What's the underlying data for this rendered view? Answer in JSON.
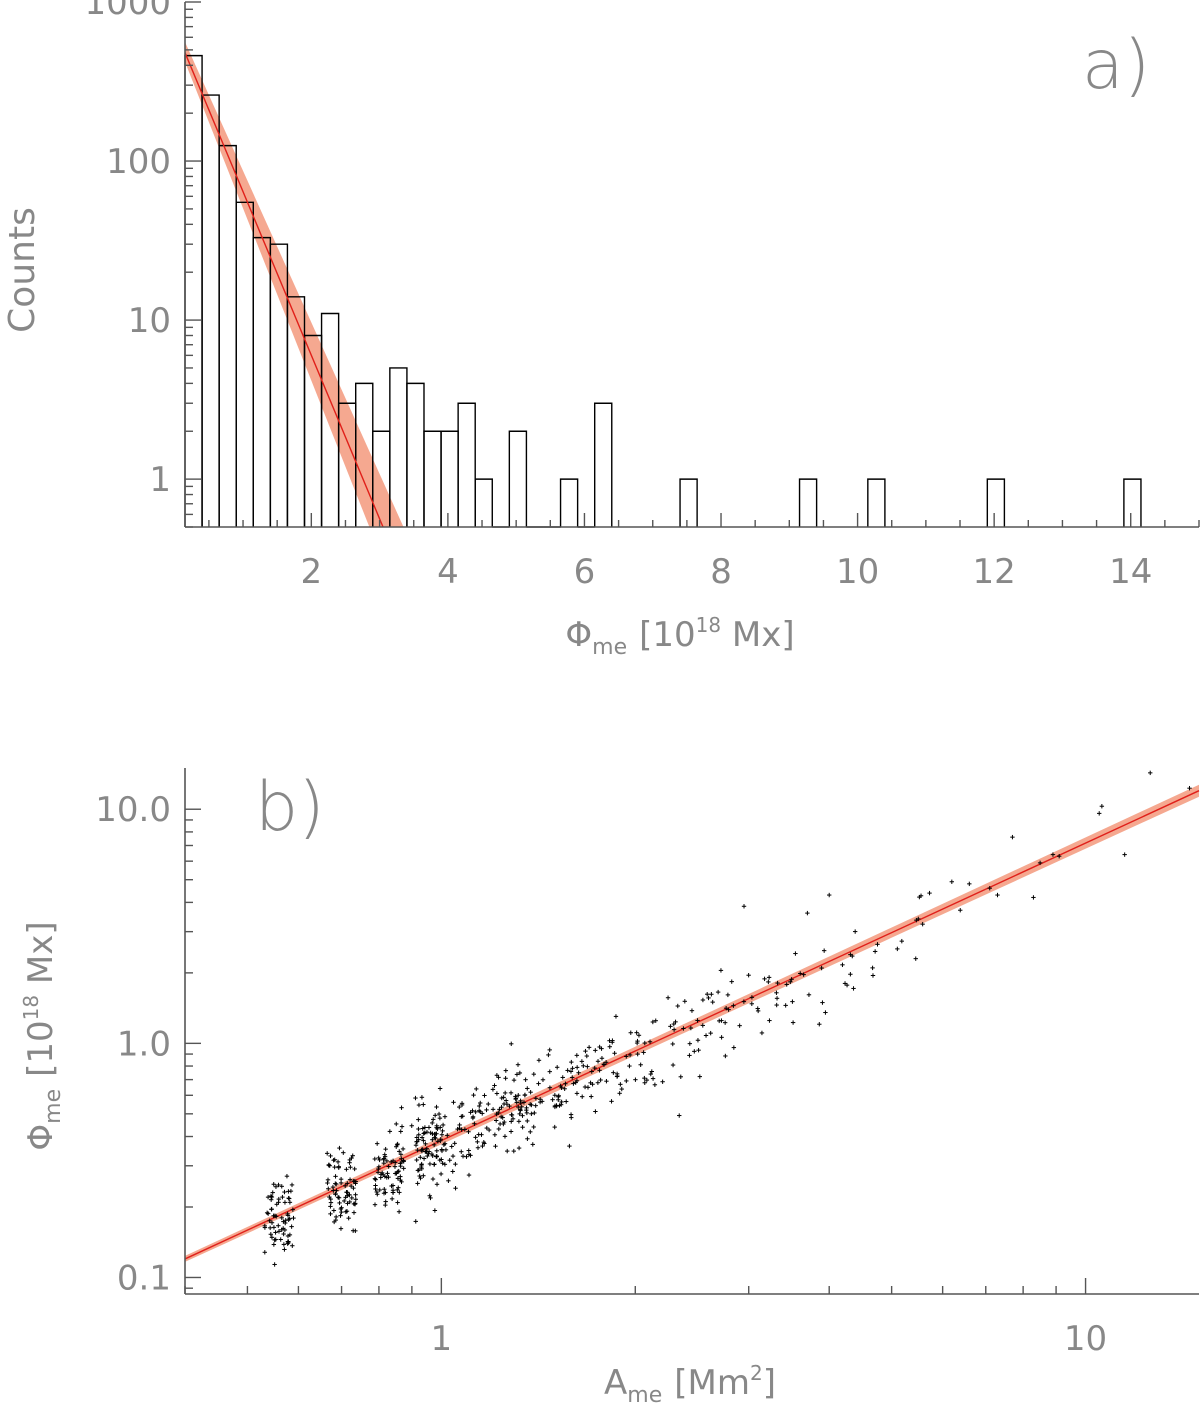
{
  "chart_data": [
    {
      "type": "bar",
      "subtype": "histogram",
      "panel_label": "a)",
      "xlabel": "Φme [10¹⁸ Mx]",
      "xlabel_parts": {
        "symbol": "Φ",
        "sub": "me",
        "pre": "[10",
        "sup": "18",
        "post": " Mx]"
      },
      "ylabel": "Counts",
      "xlim": [
        0.15,
        15.0
      ],
      "ylim": [
        0.5,
        1000
      ],
      "yscale": "log",
      "x_ticks": [
        2,
        4,
        6,
        8,
        10,
        12,
        14
      ],
      "x_tick_labels": [
        "2",
        "4",
        "6",
        "8",
        "10",
        "12",
        "14"
      ],
      "y_ticks": [
        1,
        10,
        100,
        1000
      ],
      "y_tick_labels": [
        "1",
        "10",
        "100",
        "1000"
      ],
      "bin_width": 0.25,
      "bins": [
        {
          "x0": 0.15,
          "count": 460
        },
        {
          "x0": 0.4,
          "count": 260
        },
        {
          "x0": 0.65,
          "count": 125
        },
        {
          "x0": 0.9,
          "count": 55
        },
        {
          "x0": 1.15,
          "count": 33
        },
        {
          "x0": 1.4,
          "count": 30
        },
        {
          "x0": 1.65,
          "count": 14
        },
        {
          "x0": 1.9,
          "count": 8
        },
        {
          "x0": 2.15,
          "count": 11
        },
        {
          "x0": 2.4,
          "count": 3
        },
        {
          "x0": 2.65,
          "count": 4
        },
        {
          "x0": 2.9,
          "count": 2
        },
        {
          "x0": 3.15,
          "count": 5
        },
        {
          "x0": 3.4,
          "count": 4
        },
        {
          "x0": 3.65,
          "count": 2
        },
        {
          "x0": 3.9,
          "count": 2
        },
        {
          "x0": 4.15,
          "count": 3
        },
        {
          "x0": 4.4,
          "count": 1
        },
        {
          "x0": 4.65,
          "count": 0
        },
        {
          "x0": 4.9,
          "count": 2
        },
        {
          "x0": 5.15,
          "count": 0
        },
        {
          "x0": 5.4,
          "count": 0
        },
        {
          "x0": 5.65,
          "count": 1
        },
        {
          "x0": 5.9,
          "count": 0
        },
        {
          "x0": 6.15,
          "count": 3
        },
        {
          "x0": 7.4,
          "count": 1
        },
        {
          "x0": 9.15,
          "count": 1
        },
        {
          "x0": 10.15,
          "count": 1
        },
        {
          "x0": 11.9,
          "count": 1
        },
        {
          "x0": 13.9,
          "count": 1
        }
      ],
      "fit": {
        "model": "exponential",
        "points": [
          [
            0.15,
            480
          ],
          [
            3.05,
            0.5
          ]
        ],
        "band_low": [
          [
            0.15,
            420
          ],
          [
            2.85,
            0.5
          ]
        ],
        "band_high": [
          [
            0.15,
            560
          ],
          [
            3.35,
            0.5
          ]
        ],
        "line_color": "#e0201a",
        "band_color": "#f5a890"
      },
      "grid": false,
      "legend": "none"
    },
    {
      "type": "scatter",
      "panel_label": "b)",
      "xlabel": "Ame [Mm²]",
      "xlabel_parts": {
        "symbol": "A",
        "sub": "me",
        "pre": "[Mm",
        "sup": "2",
        "post": "]"
      },
      "ylabel": "Φme [10¹⁸ Mx]",
      "ylabel_parts": {
        "symbol": "Φ",
        "sub": "me",
        "pre": "[10",
        "sup": "18",
        "post": " Mx]"
      },
      "xscale": "log",
      "yscale": "log",
      "xlim": [
        0.4,
        15
      ],
      "ylim": [
        0.085,
        15
      ],
      "x_ticks": [
        1,
        10
      ],
      "x_tick_labels": [
        "1",
        "10"
      ],
      "y_ticks": [
        0.1,
        1.0,
        10.0
      ],
      "y_tick_labels": [
        "0.1",
        "1.0",
        "10.0"
      ],
      "clusters": [
        {
          "x": 0.56,
          "y_center": 0.185,
          "count": 70
        },
        {
          "x": 0.7,
          "y_center": 0.235,
          "count": 80
        },
        {
          "x": 0.83,
          "y_center": 0.29,
          "count": 75
        },
        {
          "x": 0.96,
          "y_center": 0.36,
          "count": 75
        },
        {
          "x": 1.1,
          "y_center": 0.42,
          "count": 70
        },
        {
          "x": 1.22,
          "y_center": 0.47,
          "count": 50
        },
        {
          "x": 1.35,
          "y_center": 0.55,
          "count": 45
        },
        {
          "x": 1.55,
          "y_center": 0.65,
          "count": 40
        },
        {
          "x": 1.8,
          "y_center": 0.78,
          "count": 38
        },
        {
          "x": 2.1,
          "y_center": 0.92,
          "count": 32
        },
        {
          "x": 2.5,
          "y_center": 1.15,
          "count": 28
        },
        {
          "x": 3.0,
          "y_center": 1.45,
          "count": 25
        },
        {
          "x": 3.6,
          "y_center": 1.75,
          "count": 18
        },
        {
          "x": 4.4,
          "y_center": 2.3,
          "count": 10
        },
        {
          "x": 5.4,
          "y_center": 3.0,
          "count": 6
        }
      ],
      "points": [
        [
          6.2,
          4.9
        ],
        [
          6.6,
          4.8
        ],
        [
          7.1,
          4.6
        ],
        [
          7.3,
          4.3
        ],
        [
          7.7,
          7.6
        ],
        [
          8.3,
          4.2
        ],
        [
          8.5,
          5.9
        ],
        [
          8.9,
          6.4
        ],
        [
          9.1,
          6.3
        ],
        [
          10.5,
          9.6
        ],
        [
          10.6,
          10.3
        ],
        [
          11.5,
          6.4
        ],
        [
          12.6,
          14.3
        ],
        [
          14.5,
          12.3
        ],
        [
          2.95,
          3.85
        ],
        [
          4.0,
          4.3
        ],
        [
          3.7,
          3.6
        ],
        [
          5.5,
          3.4
        ],
        [
          5.45,
          2.3
        ]
      ],
      "fit": {
        "model": "power_law",
        "points": [
          [
            0.4,
            0.12
          ],
          [
            15,
            12.0
          ]
        ],
        "line_color": "#e0201a",
        "band_color": "#f5a890"
      },
      "grid": false,
      "legend": "none"
    }
  ]
}
